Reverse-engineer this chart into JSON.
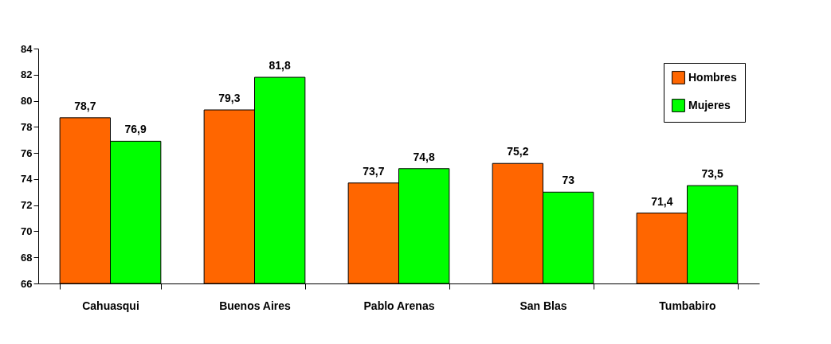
{
  "chart_data": {
    "type": "bar",
    "categories": [
      "Cahuasqui",
      "Buenos Aires",
      "Pablo Arenas",
      "San Blas",
      "Tumbabiro"
    ],
    "series": [
      {
        "name": "Hombres",
        "color": "#ff6600",
        "values": [
          78.7,
          79.3,
          73.7,
          75.2,
          71.4
        ],
        "value_labels": [
          "78,7",
          "79,3",
          "73,7",
          "75,2",
          "71,4"
        ]
      },
      {
        "name": "Mujeres",
        "color": "#00ff00",
        "values": [
          76.9,
          81.8,
          74.8,
          73,
          73.5
        ],
        "value_labels": [
          "76,9",
          "81,8",
          "74,8",
          "73",
          "73,5"
        ]
      }
    ],
    "ylim": [
      66,
      84
    ],
    "yticks": [
      66,
      68,
      70,
      72,
      74,
      76,
      78,
      80,
      82,
      84
    ],
    "grid": false,
    "legend": "top right"
  }
}
